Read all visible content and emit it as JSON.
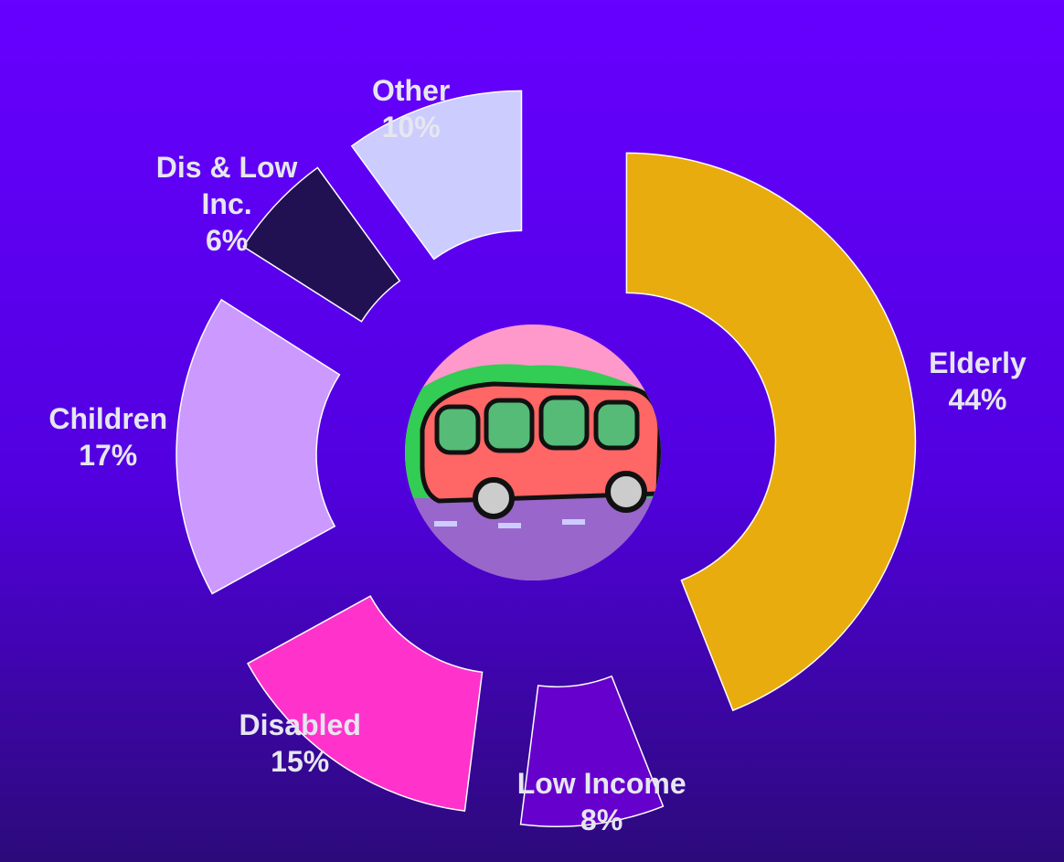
{
  "chart_data": {
    "type": "donut",
    "categories": [
      "Elderly",
      "Low Income",
      "Disabled",
      "Children",
      "Dis & Low Inc.",
      "Other"
    ],
    "values": [
      44,
      8,
      15,
      17,
      6,
      10
    ],
    "value_labels": [
      "44%",
      "8%",
      "15%",
      "17%",
      "6%",
      "10%"
    ],
    "colors": [
      "#e9ac0e",
      "#6600cc",
      "#ff33cc",
      "#cc99ff",
      "#221152",
      "#ccccff"
    ],
    "exploded": true
  }
}
